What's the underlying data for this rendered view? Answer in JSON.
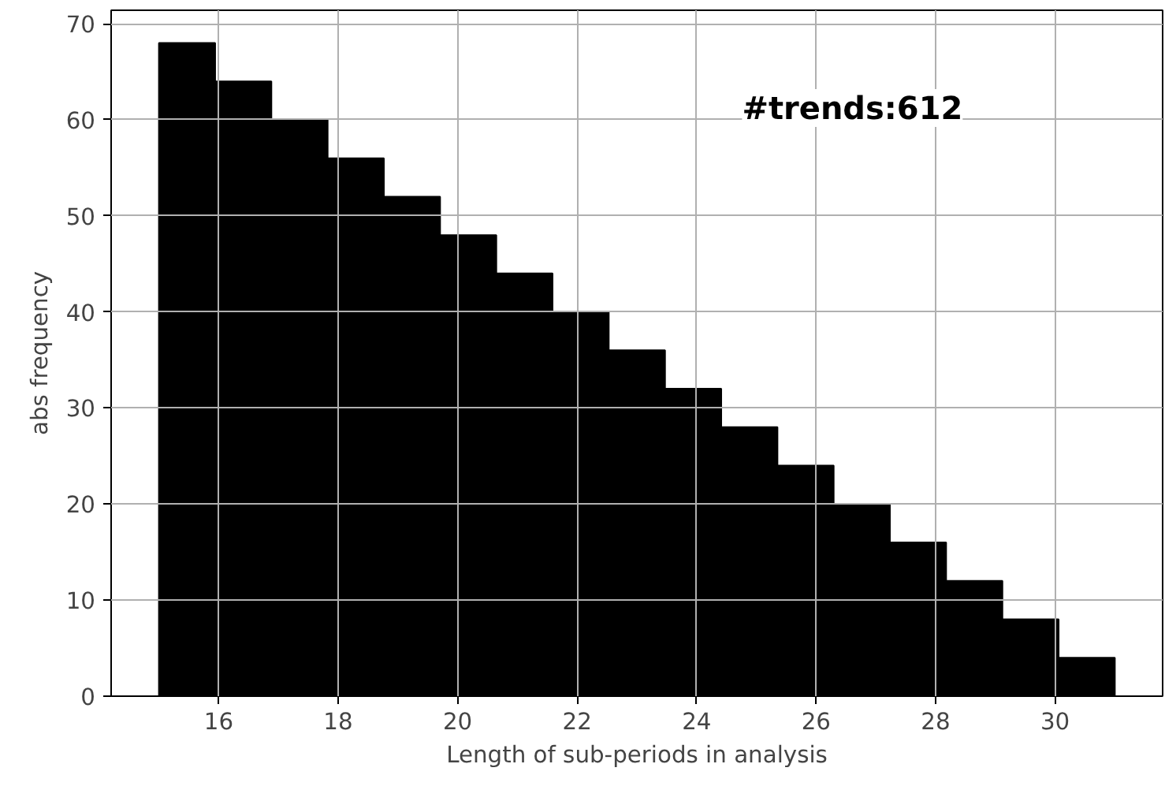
{
  "chart_data": {
    "type": "histogram",
    "xlabel": "Length of sub-periods in analysis",
    "ylabel": "abs frequency",
    "annotations": [
      "#trends:612"
    ],
    "bins": [
      15,
      15.941,
      16.882,
      17.824,
      18.765,
      19.706,
      20.647,
      21.588,
      22.529,
      23.471,
      24.412,
      25.353,
      26.294,
      27.235,
      28.176,
      29.118,
      30.059,
      31
    ],
    "values": [
      68,
      64,
      60,
      56,
      52,
      48,
      44,
      40,
      36,
      32,
      28,
      24,
      20,
      16,
      12,
      8,
      4
    ],
    "color": "#000000",
    "xlim": [
      14.2,
      31.8
    ],
    "ylim": [
      0,
      71.4
    ],
    "xticks": [
      16,
      18,
      20,
      22,
      24,
      26,
      28,
      30
    ],
    "yticks": [
      0,
      10,
      20,
      30,
      40,
      50,
      60,
      70
    ],
    "grid": true
  }
}
